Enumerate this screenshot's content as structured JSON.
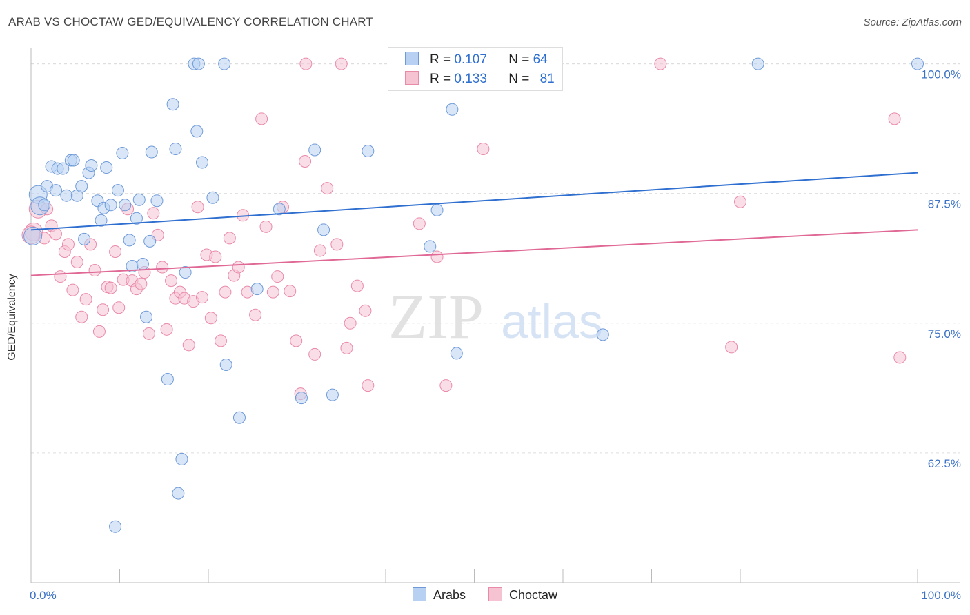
{
  "header": {
    "title": "ARAB VS CHOCTAW GED/EQUIVALENCY CORRELATION CHART",
    "source": "Source: ZipAtlas.com"
  },
  "legend": {
    "rows": [
      {
        "r_label": "R =",
        "r_value": "0.107",
        "n_label": "N =",
        "n_value": "64"
      },
      {
        "r_label": "R =",
        "r_value": "0.133",
        "n_label": "N =",
        "n_value": "81"
      }
    ]
  },
  "watermark": {
    "zip": "ZIP",
    "atlas": "atlas"
  },
  "colors": {
    "arab_fill": "#b8d1f2",
    "arab_stroke": "#6f9ad8",
    "arab_line": "#2f6fd0",
    "choctaw_fill": "#f6c3d3",
    "choctaw_stroke": "#e98aa8",
    "choctaw_line": "#e06895",
    "axis_label": "#3b72c6",
    "grid": "#dddddd"
  },
  "chart_data": {
    "type": "scatter",
    "title": "ARAB VS CHOCTAW GED/EQUIVALENCY CORRELATION CHART",
    "xlabel": "",
    "ylabel": "GED/Equivalency",
    "xlim": [
      0,
      100
    ],
    "ylim": [
      50,
      101.5
    ],
    "x_tick_labels": [
      "0.0%",
      "100.0%"
    ],
    "y_ticks": [
      62.5,
      75.0,
      87.5,
      100.0
    ],
    "y_tick_labels": [
      "62.5%",
      "75.0%",
      "87.5%",
      "100.0%"
    ],
    "grid": true,
    "legend_position": "bottom-center",
    "series": [
      {
        "name": "Arabs",
        "trend": {
          "x": [
            0,
            100
          ],
          "y": [
            84.0,
            89.5
          ]
        },
        "points": [
          [
            0.2,
            83.4
          ],
          [
            0.8,
            87.4
          ],
          [
            1.0,
            86.3
          ],
          [
            1.5,
            86.4
          ],
          [
            1.8,
            88.2
          ],
          [
            2.3,
            90.1
          ],
          [
            2.8,
            87.8
          ],
          [
            3.0,
            89.9
          ],
          [
            3.6,
            89.9
          ],
          [
            4.0,
            87.3
          ],
          [
            4.5,
            90.7
          ],
          [
            4.8,
            90.7
          ],
          [
            5.2,
            87.3
          ],
          [
            5.7,
            88.2
          ],
          [
            6.0,
            83.1
          ],
          [
            6.5,
            89.5
          ],
          [
            6.8,
            90.2
          ],
          [
            7.5,
            86.8
          ],
          [
            7.9,
            84.9
          ],
          [
            8.2,
            86.1
          ],
          [
            8.5,
            90.0
          ],
          [
            9.0,
            86.4
          ],
          [
            9.5,
            55.4
          ],
          [
            9.8,
            87.8
          ],
          [
            10.3,
            91.4
          ],
          [
            10.6,
            86.4
          ],
          [
            11.1,
            83.0
          ],
          [
            11.4,
            80.5
          ],
          [
            11.9,
            85.1
          ],
          [
            12.2,
            86.9
          ],
          [
            12.6,
            80.7
          ],
          [
            13.0,
            75.6
          ],
          [
            13.4,
            82.9
          ],
          [
            13.6,
            91.5
          ],
          [
            14.2,
            86.8
          ],
          [
            15.4,
            69.6
          ],
          [
            16.0,
            96.1
          ],
          [
            16.3,
            91.8
          ],
          [
            16.6,
            58.6
          ],
          [
            17.0,
            61.9
          ],
          [
            17.4,
            79.9
          ],
          [
            18.4,
            100.0
          ],
          [
            18.7,
            93.5
          ],
          [
            18.9,
            100.0
          ],
          [
            19.3,
            90.5
          ],
          [
            20.5,
            87.1
          ],
          [
            21.8,
            100.0
          ],
          [
            22.0,
            71.0
          ],
          [
            23.5,
            65.9
          ],
          [
            25.5,
            78.3
          ],
          [
            28.0,
            86.0
          ],
          [
            30.5,
            67.8
          ],
          [
            32.0,
            91.7
          ],
          [
            33.0,
            84.0
          ],
          [
            34.0,
            68.1
          ],
          [
            38.0,
            91.6
          ],
          [
            45.0,
            82.4
          ],
          [
            45.8,
            85.9
          ],
          [
            47.5,
            95.6
          ],
          [
            48.0,
            72.1
          ],
          [
            58.0,
            100.0
          ],
          [
            64.5,
            73.9
          ],
          [
            82.0,
            100.0
          ],
          [
            100.0,
            100.0
          ]
        ]
      },
      {
        "name": "Choctaw",
        "trend": {
          "x": [
            0,
            100
          ],
          "y": [
            79.6,
            84.0
          ]
        },
        "points": [
          [
            0.3,
            83.8
          ],
          [
            0.8,
            86.0
          ],
          [
            1.5,
            83.2
          ],
          [
            1.8,
            86.0
          ],
          [
            2.3,
            84.4
          ],
          [
            2.8,
            83.6
          ],
          [
            3.3,
            79.5
          ],
          [
            3.8,
            81.9
          ],
          [
            4.2,
            82.6
          ],
          [
            4.7,
            78.2
          ],
          [
            5.2,
            80.9
          ],
          [
            5.7,
            75.6
          ],
          [
            6.2,
            77.3
          ],
          [
            6.7,
            82.6
          ],
          [
            7.2,
            80.1
          ],
          [
            7.7,
            74.2
          ],
          [
            8.1,
            76.3
          ],
          [
            8.6,
            78.5
          ],
          [
            9.0,
            78.4
          ],
          [
            9.5,
            81.9
          ],
          [
            9.9,
            76.5
          ],
          [
            10.4,
            79.2
          ],
          [
            10.9,
            86.0
          ],
          [
            11.4,
            79.1
          ],
          [
            11.9,
            78.3
          ],
          [
            12.4,
            78.8
          ],
          [
            12.8,
            79.9
          ],
          [
            13.3,
            74.0
          ],
          [
            13.8,
            85.6
          ],
          [
            14.3,
            83.5
          ],
          [
            14.8,
            80.4
          ],
          [
            15.3,
            74.4
          ],
          [
            15.8,
            79.1
          ],
          [
            16.3,
            77.4
          ],
          [
            16.8,
            78.0
          ],
          [
            17.3,
            77.4
          ],
          [
            17.8,
            72.9
          ],
          [
            18.3,
            77.1
          ],
          [
            18.8,
            86.2
          ],
          [
            19.3,
            77.5
          ],
          [
            19.8,
            81.6
          ],
          [
            20.3,
            75.5
          ],
          [
            20.8,
            81.4
          ],
          [
            21.4,
            73.3
          ],
          [
            21.9,
            78.0
          ],
          [
            22.4,
            83.2
          ],
          [
            22.9,
            79.6
          ],
          [
            23.4,
            80.4
          ],
          [
            23.9,
            85.4
          ],
          [
            24.4,
            78.0
          ],
          [
            25.3,
            75.8
          ],
          [
            26.0,
            94.7
          ],
          [
            26.5,
            84.3
          ],
          [
            27.3,
            78.0
          ],
          [
            27.8,
            79.5
          ],
          [
            28.4,
            86.2
          ],
          [
            29.2,
            78.1
          ],
          [
            29.9,
            73.3
          ],
          [
            30.4,
            68.2
          ],
          [
            30.9,
            90.6
          ],
          [
            31.0,
            100.0
          ],
          [
            32.0,
            72.0
          ],
          [
            32.6,
            82.0
          ],
          [
            33.4,
            88.0
          ],
          [
            34.5,
            82.6
          ],
          [
            35.0,
            100.0
          ],
          [
            35.6,
            72.6
          ],
          [
            36.0,
            75.0
          ],
          [
            36.8,
            78.6
          ],
          [
            37.7,
            76.2
          ],
          [
            38.0,
            69.0
          ],
          [
            43.8,
            84.6
          ],
          [
            45.8,
            81.4
          ],
          [
            46.8,
            69.0
          ],
          [
            51.0,
            91.8
          ],
          [
            71.0,
            100.0
          ],
          [
            79.0,
            72.7
          ],
          [
            80.0,
            86.7
          ],
          [
            97.4,
            94.7
          ],
          [
            98.0,
            71.7
          ],
          [
            0.0,
            83.5
          ]
        ]
      }
    ]
  },
  "bottom_legend": [
    {
      "label": "Arabs"
    },
    {
      "label": "Choctaw"
    }
  ]
}
